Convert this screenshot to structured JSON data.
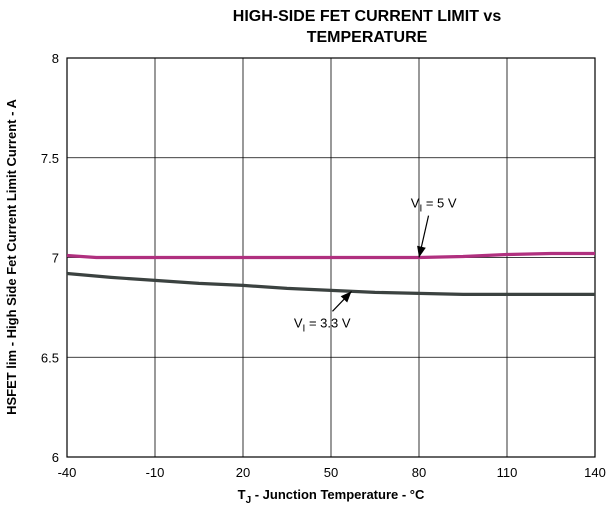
{
  "chart_data": {
    "type": "line",
    "title_line1": "HIGH-SIDE FET CURRENT LIMIT vs",
    "title_line2": "TEMPERATURE",
    "xlabel": {
      "main": "T",
      "sub": "J",
      "rest": " - Junction Temperature - °C"
    },
    "ylabel": "HSFET lim - High Side Fet Current Limit Current - A",
    "xlim": [
      -40,
      140
    ],
    "ylim": [
      6,
      8
    ],
    "xticks": [
      -40,
      -10,
      20,
      50,
      80,
      110,
      140
    ],
    "yticks": [
      6,
      6.5,
      7,
      7.5,
      8
    ],
    "yticklabels": [
      "6",
      "6.5",
      "7",
      "7.5",
      "8"
    ],
    "grid": true,
    "series": [
      {
        "name": "VI = 5 V",
        "label": {
          "main": "V",
          "sub": "I",
          "rest": " = 5 V"
        },
        "color": "#b0307f",
        "x": [
          -40,
          -30,
          -10,
          20,
          50,
          80,
          95,
          110,
          125,
          140
        ],
        "y": [
          7.01,
          7.0,
          7.0,
          7.0,
          7.0,
          7.0,
          7.005,
          7.015,
          7.02,
          7.02
        ]
      },
      {
        "name": "VI = 3.3 V",
        "label": {
          "main": "V",
          "sub": "I",
          "rest": " = 3.3 V"
        },
        "color": "#3b4240",
        "x": [
          -40,
          -25,
          -10,
          5,
          20,
          35,
          50,
          65,
          80,
          95,
          110,
          125,
          140
        ],
        "y": [
          6.92,
          6.9,
          6.885,
          6.87,
          6.86,
          6.845,
          6.835,
          6.825,
          6.82,
          6.815,
          6.815,
          6.815,
          6.815
        ]
      }
    ],
    "annotations": [
      {
        "series": 0,
        "text_at": [
          85,
          7.25
        ],
        "arrow_to": [
          80,
          7.0
        ]
      },
      {
        "series": 1,
        "text_at": [
          47,
          6.65
        ],
        "arrow_to": [
          57,
          6.83
        ]
      }
    ]
  }
}
